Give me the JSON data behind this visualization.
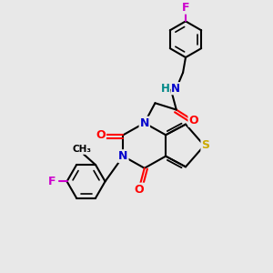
{
  "bg_color": "#e8e8e8",
  "atom_colors": {
    "C": "#000000",
    "N": "#0000cc",
    "O": "#ff0000",
    "S": "#ccaa00",
    "F": "#cc00cc",
    "H": "#008888"
  },
  "bond_color": "#000000",
  "bond_width": 1.5
}
